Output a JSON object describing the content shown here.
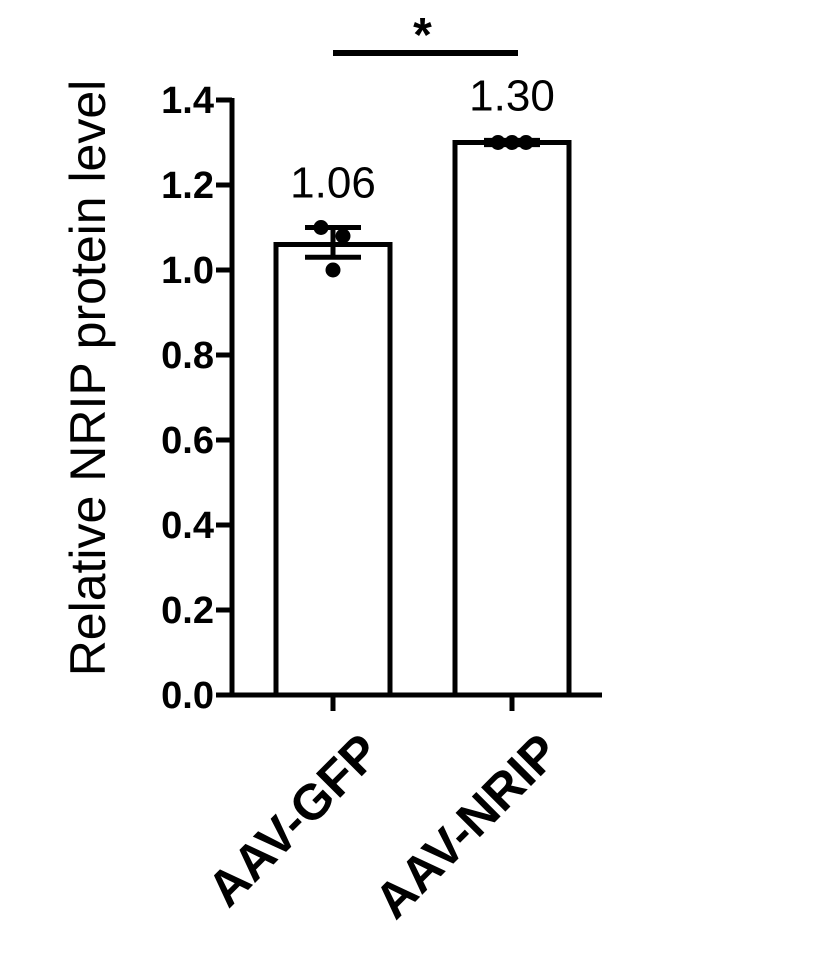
{
  "chart_data": {
    "type": "bar",
    "title": "",
    "xlabel": "",
    "ylabel": "Relative NRIP protein level",
    "ylim": [
      0,
      1.4
    ],
    "yticks": [
      "0.0",
      "0.2",
      "0.4",
      "0.6",
      "0.8",
      "1.0",
      "1.2",
      "1.4"
    ],
    "categories": [
      "AAV-GFP",
      "AAV-NRIP"
    ],
    "values": [
      1.06,
      1.3
    ],
    "data_labels": [
      "1.06",
      "1.30"
    ],
    "error_bars": [
      {
        "low": 1.03,
        "high": 1.1
      },
      {
        "low": 1.295,
        "high": 1.305
      }
    ],
    "points": [
      [
        1.0,
        1.1,
        1.08
      ],
      [
        1.3,
        1.3,
        1.3
      ]
    ],
    "significance": {
      "between": [
        0,
        1
      ],
      "label": "*"
    },
    "grid": false,
    "legend": "none",
    "colors": {
      "bar_fill": "#ffffff",
      "stroke": "#000000"
    }
  }
}
